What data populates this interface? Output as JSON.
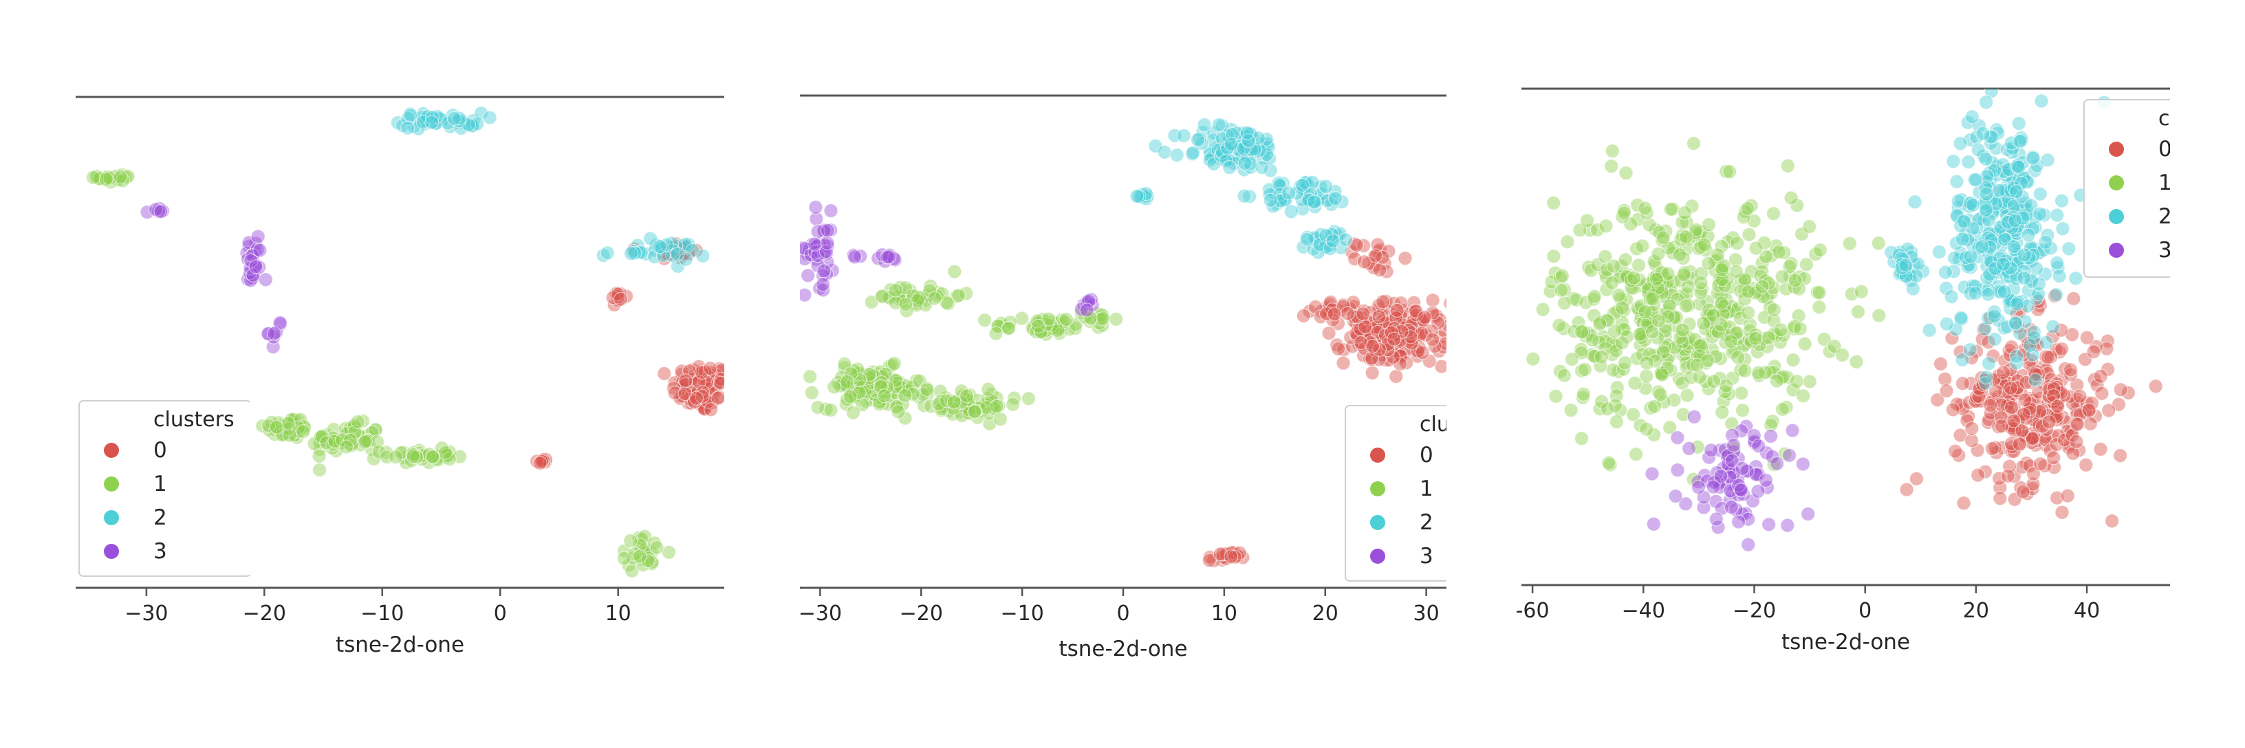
{
  "colors": {
    "0": "#d9544d",
    "1": "#8fd14f",
    "2": "#4ccfd6",
    "3": "#9b50d9"
  },
  "chart_data": [
    {
      "type": "scatter",
      "xlabel": "tsne-2d-one",
      "xlim": [
        -36,
        19
      ],
      "ylim": [
        -12,
        30
      ],
      "xticks": [
        -30,
        -20,
        -10,
        0,
        10
      ],
      "tick_labels": [
        "−30",
        "−20",
        "−10",
        "0",
        "10"
      ],
      "legend": {
        "title": "clusters",
        "entries": [
          "0",
          "1",
          "2",
          "3"
        ],
        "placement": "lower-left"
      },
      "clusters": [
        {
          "name": "0",
          "regions": [
            {
              "cx": 17.0,
              "cy": 5,
              "rx": 2.4,
              "ry": 2.2,
              "n": 90
            },
            {
              "cx": 15.0,
              "cy": 17,
              "rx": 1.8,
              "ry": 0.9,
              "n": 25
            },
            {
              "cx": 10.0,
              "cy": 13,
              "rx": 0.6,
              "ry": 0.8,
              "n": 10
            },
            {
              "cx": 3.5,
              "cy": -1.5,
              "rx": 0.5,
              "ry": 0.3,
              "n": 8
            }
          ]
        },
        {
          "name": "1",
          "regions": [
            {
              "cx": -18,
              "cy": 1.5,
              "rx": 2.0,
              "ry": 1.0,
              "n": 40
            },
            {
              "cx": -13,
              "cy": 0.5,
              "rx": 3.0,
              "ry": 1.3,
              "n": 60
            },
            {
              "cx": -7,
              "cy": -1.0,
              "rx": 3.0,
              "ry": 0.6,
              "n": 40
            },
            {
              "cx": -32.5,
              "cy": 23.5,
              "rx": 1.6,
              "ry": 0.5,
              "n": 22
            },
            {
              "cx": 12,
              "cy": -9.5,
              "rx": 2.2,
              "ry": 1.4,
              "n": 25
            }
          ]
        },
        {
          "name": "2",
          "regions": [
            {
              "cx": -5,
              "cy": 28.5,
              "rx": 3.5,
              "ry": 0.7,
              "n": 45
            },
            {
              "cx": 13,
              "cy": 17,
              "rx": 4.5,
              "ry": 0.9,
              "n": 30
            }
          ]
        },
        {
          "name": "3",
          "regions": [
            {
              "cx": -21,
              "cy": 16,
              "rx": 0.8,
              "ry": 2.6,
              "n": 25
            },
            {
              "cx": -19,
              "cy": 10,
              "rx": 0.6,
              "ry": 1.2,
              "n": 8
            },
            {
              "cx": -29,
              "cy": 20.5,
              "rx": 0.9,
              "ry": 0.3,
              "n": 6
            }
          ]
        }
      ]
    },
    {
      "type": "scatter",
      "xlabel": "tsne-2d-one",
      "xlim": [
        -32,
        32
      ],
      "ylim": [
        -28,
        34
      ],
      "xticks": [
        -30,
        -20,
        -10,
        0,
        10,
        20,
        30
      ],
      "tick_labels": [
        "−30",
        "−20",
        "−10",
        "0",
        "10",
        "20",
        "30"
      ],
      "legend": {
        "title": "clu",
        "entries": [
          "0",
          "1",
          "2",
          "3"
        ],
        "placement": "lower-right"
      },
      "clusters": [
        {
          "name": "0",
          "regions": [
            {
              "cx": 27,
              "cy": 4,
              "rx": 5,
              "ry": 4,
              "n": 180
            },
            {
              "cx": 21,
              "cy": 7,
              "rx": 2.5,
              "ry": 1.5,
              "n": 25
            },
            {
              "cx": 25,
              "cy": 14,
              "rx": 2,
              "ry": 2,
              "n": 20
            },
            {
              "cx": 10,
              "cy": -25,
              "rx": 1.5,
              "ry": 0.8,
              "n": 18
            }
          ]
        },
        {
          "name": "1",
          "regions": [
            {
              "cx": -25,
              "cy": -3,
              "rx": 5,
              "ry": 2.6,
              "n": 130
            },
            {
              "cx": -16,
              "cy": -5,
              "rx": 6,
              "ry": 2.0,
              "n": 70
            },
            {
              "cx": -20,
              "cy": 9,
              "rx": 4,
              "ry": 1.8,
              "n": 40
            },
            {
              "cx": -8,
              "cy": 5,
              "rx": 5,
              "ry": 1.2,
              "n": 45
            },
            {
              "cx": -3,
              "cy": 6,
              "rx": 2,
              "ry": 1.0,
              "n": 15
            }
          ]
        },
        {
          "name": "2",
          "regions": [
            {
              "cx": 11,
              "cy": 28,
              "rx": 5,
              "ry": 3,
              "n": 90
            },
            {
              "cx": 18,
              "cy": 22,
              "rx": 4.5,
              "ry": 2,
              "n": 50
            },
            {
              "cx": 20,
              "cy": 16,
              "rx": 2.5,
              "ry": 1.5,
              "n": 25
            },
            {
              "cx": 2,
              "cy": 22,
              "rx": 0.8,
              "ry": 0.6,
              "n": 10
            }
          ]
        },
        {
          "name": "3",
          "regions": [
            {
              "cx": -30,
              "cy": 15,
              "rx": 1.5,
              "ry": 5,
              "n": 40
            },
            {
              "cx": -24,
              "cy": 14,
              "rx": 3,
              "ry": 0.5,
              "n": 12
            },
            {
              "cx": -3.5,
              "cy": 8,
              "rx": 1.5,
              "ry": 0.8,
              "n": 8
            }
          ]
        }
      ]
    },
    {
      "type": "scatter",
      "xlabel": "tsne-2d-one",
      "xlim": [
        -62,
        55
      ],
      "ylim": [
        -38,
        45
      ],
      "xticks": [
        -60,
        -40,
        -20,
        0,
        20,
        40
      ],
      "tick_labels": [
        "-60",
        "−40",
        "−20",
        "0",
        "20",
        "40"
      ],
      "legend": {
        "title": "cl",
        "entries": [
          "0",
          "1",
          "2",
          "3"
        ],
        "placement": "upper-right"
      },
      "clusters": [
        {
          "name": "0",
          "regions": [
            {
              "cx": 30,
              "cy": -8,
              "rx": 14,
              "ry": 14,
              "n": 300
            }
          ]
        },
        {
          "name": "1",
          "regions": [
            {
              "cx": -32,
              "cy": 8,
              "rx": 24,
              "ry": 20,
              "n": 520
            }
          ]
        },
        {
          "name": "2",
          "regions": [
            {
              "cx": 25,
              "cy": 22,
              "rx": 10,
              "ry": 20,
              "n": 320
            },
            {
              "cx": 7,
              "cy": 15,
              "rx": 3,
              "ry": 4,
              "n": 30
            }
          ]
        },
        {
          "name": "3",
          "regions": [
            {
              "cx": -23,
              "cy": -21,
              "rx": 10,
              "ry": 9,
              "n": 90
            }
          ]
        }
      ]
    }
  ]
}
